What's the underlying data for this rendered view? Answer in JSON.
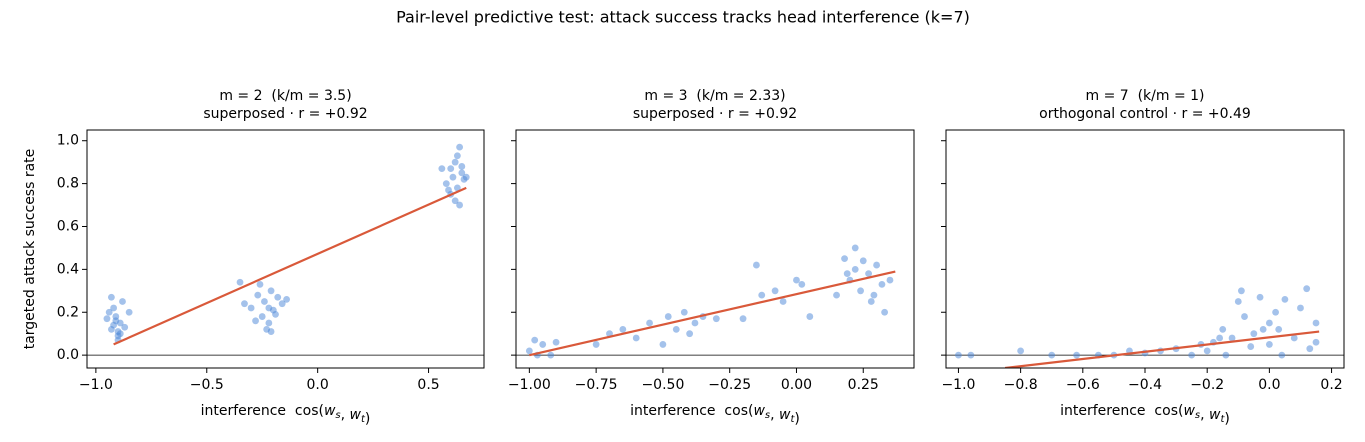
{
  "title": "Pair-level predictive test: attack success tracks head interference (k=7)",
  "chart_data": [
    {
      "type": "scatter",
      "title": "m = 2  (k/m = 3.5)",
      "subtitle": "superposed · r = +0.92",
      "xlabel": "interference  cos(w_s, w_t)",
      "ylabel": "targeted attack success rate",
      "xlim": [
        -1.04,
        0.75
      ],
      "ylim": [
        -0.06,
        1.05
      ],
      "xticks": [
        {
          "value": -1.0,
          "label": "−1.0"
        },
        {
          "value": -0.5,
          "label": "−0.5"
        },
        {
          "value": 0,
          "label": "0.0"
        },
        {
          "value": 0.5,
          "label": "0.5"
        }
      ],
      "yticks": [
        {
          "value": 0,
          "label": "0.0"
        },
        0.2,
        0.4,
        0.6,
        0.8,
        {
          "value": 1.0,
          "label": "1.0"
        }
      ],
      "hline": 0,
      "color": "#4a86d8",
      "x": [
        -0.93,
        -0.91,
        -0.9,
        -0.92,
        -0.89,
        -0.88,
        -0.94,
        -0.9,
        -0.87,
        -0.91,
        -0.93,
        -0.89,
        -0.85,
        -0.95,
        -0.9,
        -0.92,
        -0.35,
        -0.3,
        -0.27,
        -0.25,
        -0.24,
        -0.22,
        -0.21,
        -0.2,
        -0.18,
        -0.16,
        -0.28,
        -0.23,
        -0.19,
        -0.26,
        -0.22,
        -0.14,
        -0.33,
        -0.21,
        0.56,
        0.58,
        0.6,
        0.61,
        0.62,
        0.63,
        0.64,
        0.65,
        0.66,
        0.62,
        0.6,
        0.64,
        0.67,
        0.59,
        0.63,
        0.65
      ],
      "values": [
        0.12,
        0.18,
        0.09,
        0.22,
        0.15,
        0.25,
        0.2,
        0.07,
        0.13,
        0.16,
        0.27,
        0.1,
        0.2,
        0.17,
        0.11,
        0.14,
        0.34,
        0.22,
        0.28,
        0.18,
        0.25,
        0.15,
        0.3,
        0.21,
        0.27,
        0.24,
        0.16,
        0.12,
        0.19,
        0.33,
        0.22,
        0.26,
        0.24,
        0.11,
        0.87,
        0.8,
        0.75,
        0.83,
        0.9,
        0.78,
        0.97,
        0.85,
        0.82,
        0.72,
        0.87,
        0.7,
        0.83,
        0.77,
        0.93,
        0.88
      ],
      "fit_line": {
        "x": [
          -0.92,
          0.67
        ],
        "y": [
          0.05,
          0.78
        ],
        "color": "#d9593a"
      }
    },
    {
      "type": "scatter",
      "title": "m = 3  (k/m = 2.33)",
      "subtitle": "superposed · r = +0.92",
      "xlabel": "interference  cos(w_s, w_t)",
      "xlim": [
        -1.05,
        0.44
      ],
      "ylim": [
        -0.06,
        1.05
      ],
      "xticks": [
        {
          "value": -1.0,
          "label": "−1.00"
        },
        {
          "value": -0.75,
          "label": "−0.75"
        },
        {
          "value": -0.5,
          "label": "−0.50"
        },
        {
          "value": -0.25,
          "label": "−0.25"
        },
        {
          "value": 0,
          "label": "0.00"
        },
        {
          "value": 0.25,
          "label": "0.25"
        }
      ],
      "hline": 0,
      "color": "#4a86d8",
      "x": [
        -1.0,
        -0.98,
        -0.97,
        -0.95,
        -0.92,
        -0.9,
        -0.75,
        -0.7,
        -0.65,
        -0.6,
        -0.55,
        -0.5,
        -0.48,
        -0.45,
        -0.42,
        -0.4,
        -0.38,
        -0.35,
        -0.3,
        -0.2,
        -0.15,
        -0.13,
        -0.08,
        -0.05,
        0.0,
        0.02,
        0.05,
        0.15,
        0.18,
        0.2,
        0.22,
        0.24,
        0.25,
        0.27,
        0.28,
        0.3,
        0.32,
        0.33,
        0.35,
        0.22,
        0.19,
        0.29
      ],
      "values": [
        0.02,
        0.07,
        0.0,
        0.05,
        0.0,
        0.06,
        0.05,
        0.1,
        0.12,
        0.08,
        0.15,
        0.05,
        0.18,
        0.12,
        0.2,
        0.1,
        0.15,
        0.18,
        0.17,
        0.17,
        0.42,
        0.28,
        0.3,
        0.25,
        0.35,
        0.33,
        0.18,
        0.28,
        0.45,
        0.35,
        0.4,
        0.3,
        0.44,
        0.38,
        0.25,
        0.42,
        0.33,
        0.2,
        0.35,
        0.5,
        0.38,
        0.28
      ],
      "fit_line": {
        "x": [
          -1.0,
          0.37
        ],
        "y": [
          0.0,
          0.39
        ],
        "color": "#d9593a"
      }
    },
    {
      "type": "scatter",
      "title": "m = 7  (k/m = 1)",
      "subtitle": "orthogonal control · r = +0.49",
      "xlabel": "interference  cos(w_s, w_t)",
      "xlim": [
        -1.04,
        0.24
      ],
      "ylim": [
        -0.06,
        1.05
      ],
      "xticks": [
        {
          "value": -1.0,
          "label": "−1.0"
        },
        {
          "value": -0.8,
          "label": "−0.8"
        },
        {
          "value": -0.6,
          "label": "−0.6"
        },
        {
          "value": -0.4,
          "label": "−0.4"
        },
        {
          "value": -0.2,
          "label": "−0.2"
        },
        {
          "value": 0,
          "label": "0.0"
        },
        0.2
      ],
      "hline": 0,
      "color": "#4a86d8",
      "x": [
        -1.0,
        -0.96,
        -0.8,
        -0.7,
        -0.62,
        -0.55,
        -0.5,
        -0.45,
        -0.4,
        -0.35,
        -0.3,
        -0.25,
        -0.22,
        -0.2,
        -0.18,
        -0.15,
        -0.12,
        -0.1,
        -0.08,
        -0.06,
        -0.05,
        -0.03,
        0.0,
        0.0,
        0.02,
        0.03,
        0.05,
        0.08,
        0.1,
        0.12,
        0.13,
        0.15,
        0.15,
        -0.14,
        -0.09,
        0.04,
        -0.02,
        -0.16
      ],
      "values": [
        0.0,
        0.0,
        0.02,
        0.0,
        0.0,
        0.0,
        0.0,
        0.02,
        0.01,
        0.02,
        0.03,
        0.0,
        0.05,
        0.02,
        0.06,
        0.12,
        0.08,
        0.25,
        0.18,
        0.04,
        0.1,
        0.27,
        0.15,
        0.05,
        0.2,
        0.12,
        0.26,
        0.08,
        0.22,
        0.31,
        0.03,
        0.15,
        0.06,
        0.0,
        0.3,
        0.0,
        0.12,
        0.08
      ],
      "fit_line": {
        "x": [
          -0.85,
          0.16
        ],
        "y": [
          -0.06,
          0.11
        ],
        "color": "#d9593a"
      }
    }
  ]
}
